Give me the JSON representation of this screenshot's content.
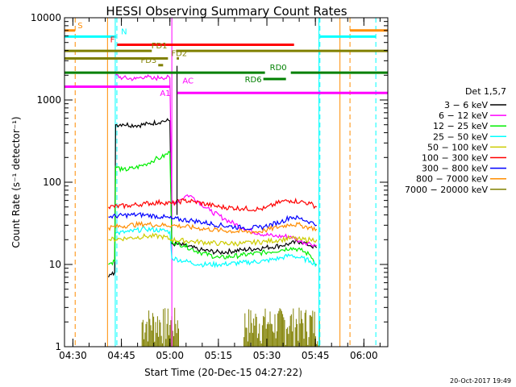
{
  "chart_data": {
    "type": "line",
    "title": "HESSI Observing Summary Count Rates",
    "xlabel": "Start Time (20-Dec-15 04:27:22)",
    "ylabel": "Count Rate (s⁻¹ detector⁻¹)",
    "x_unit": "minutes after 04:27:22",
    "xlim": [
      0,
      100
    ],
    "ylim": [
      1,
      10000
    ],
    "y_scale": "log",
    "grid": false,
    "x_ticks": [
      {
        "x": 2.6,
        "label": "04:30"
      },
      {
        "x": 17.6,
        "label": "04:45"
      },
      {
        "x": 32.6,
        "label": "05:00"
      },
      {
        "x": 47.6,
        "label": "05:15"
      },
      {
        "x": 62.6,
        "label": "05:30"
      },
      {
        "x": 77.6,
        "label": "05:45"
      },
      {
        "x": 92.6,
        "label": "06:00"
      }
    ],
    "y_ticks": [
      {
        "y": 1,
        "label": "1"
      },
      {
        "y": 10,
        "label": "10"
      },
      {
        "y": 100,
        "label": "100"
      },
      {
        "y": 1000,
        "label": "1000"
      },
      {
        "y": 10000,
        "label": "10000"
      }
    ],
    "legend": {
      "placement": "right",
      "title": "Det 1,5,7",
      "entries": [
        {
          "label": "3 − 6 keV",
          "color": "#000000"
        },
        {
          "label": "6 − 12 keV",
          "color": "#ff00ff"
        },
        {
          "label": "12 − 25 keV",
          "color": "#00ee00"
        },
        {
          "label": "25 − 50 keV",
          "color": "#00ffff"
        },
        {
          "label": "50 − 100 keV",
          "color": "#cccc00"
        },
        {
          "label": "100 − 300 keV",
          "color": "#ff0000"
        },
        {
          "label": "300 − 800 keV",
          "color": "#0000ff"
        },
        {
          "label": "800 − 7000 keV",
          "color": "#ff8c00"
        },
        {
          "label": "7000 − 20000 keV",
          "color": "#808000"
        }
      ]
    },
    "series": [
      {
        "name": "3 − 6 keV",
        "color": "#000000",
        "points": [
          [
            13.6,
            7
          ],
          [
            14.5,
            7.5
          ],
          [
            15.5,
            8
          ],
          [
            15.8,
            500
          ],
          [
            18,
            510
          ],
          [
            22,
            490
          ],
          [
            26,
            510
          ],
          [
            30,
            550
          ],
          [
            32.6,
            560
          ],
          [
            33.2,
            18
          ],
          [
            37,
            17
          ],
          [
            42,
            15
          ],
          [
            48,
            14
          ],
          [
            55,
            15
          ],
          [
            62,
            16
          ],
          [
            67,
            17
          ],
          [
            70,
            18
          ],
          [
            73,
            19
          ],
          [
            76,
            17
          ],
          [
            78,
            16
          ]
        ]
      },
      {
        "name": "6 − 12 keV",
        "color": "#ff00ff",
        "points": [
          [
            15.8,
            2000
          ],
          [
            18,
            1850
          ],
          [
            22,
            1800
          ],
          [
            25,
            1950
          ],
          [
            27,
            1800
          ],
          [
            30,
            1900
          ],
          [
            32.6,
            1850
          ],
          [
            33.2,
            55
          ],
          [
            36,
            62
          ],
          [
            38,
            70
          ],
          [
            40,
            65
          ],
          [
            45,
            45
          ],
          [
            50,
            35
          ],
          [
            55,
            28
          ],
          [
            60,
            24
          ],
          [
            65,
            22
          ],
          [
            70,
            22
          ],
          [
            73,
            19
          ],
          [
            76,
            18
          ],
          [
            78,
            17
          ]
        ]
      },
      {
        "name": "12 − 25 keV",
        "color": "#00ee00",
        "points": [
          [
            13.6,
            10
          ],
          [
            14.5,
            10.5
          ],
          [
            15.5,
            11
          ],
          [
            15.8,
            155
          ],
          [
            18,
            140
          ],
          [
            22,
            150
          ],
          [
            25,
            165
          ],
          [
            28,
            190
          ],
          [
            30,
            200
          ],
          [
            32.6,
            230
          ],
          [
            33.2,
            19
          ],
          [
            37,
            17
          ],
          [
            42,
            14
          ],
          [
            48,
            12
          ],
          [
            55,
            13
          ],
          [
            62,
            14
          ],
          [
            67,
            15
          ],
          [
            70,
            16
          ],
          [
            73,
            15
          ],
          [
            76,
            13
          ],
          [
            78,
            10
          ]
        ]
      },
      {
        "name": "25 − 50 keV",
        "color": "#00ffff",
        "points": [
          [
            15.8,
            24
          ],
          [
            20,
            25
          ],
          [
            25,
            27
          ],
          [
            30,
            26
          ],
          [
            32.6,
            25
          ],
          [
            33.2,
            12
          ],
          [
            37,
            11
          ],
          [
            42,
            10
          ],
          [
            48,
            10
          ],
          [
            55,
            10.5
          ],
          [
            62,
            11
          ],
          [
            67,
            12
          ],
          [
            70,
            13
          ],
          [
            73,
            12
          ],
          [
            76,
            11
          ],
          [
            78,
            10
          ]
        ]
      },
      {
        "name": "50 − 100 keV",
        "color": "#cccc00",
        "points": [
          [
            13.6,
            20
          ],
          [
            20,
            21
          ],
          [
            25,
            22
          ],
          [
            30,
            22
          ],
          [
            33.2,
            20
          ],
          [
            40,
            19
          ],
          [
            48,
            18
          ],
          [
            55,
            18
          ],
          [
            62,
            19
          ],
          [
            67,
            20
          ],
          [
            70,
            21
          ],
          [
            73,
            20
          ],
          [
            76,
            20
          ],
          [
            78,
            20
          ]
        ]
      },
      {
        "name": "100 − 300 keV",
        "color": "#ff0000",
        "points": [
          [
            13.6,
            50
          ],
          [
            20,
            52
          ],
          [
            25,
            55
          ],
          [
            30,
            57
          ],
          [
            33.2,
            55
          ],
          [
            37,
            60
          ],
          [
            40,
            58
          ],
          [
            48,
            50
          ],
          [
            55,
            48
          ],
          [
            60,
            47
          ],
          [
            62,
            48
          ],
          [
            67,
            58
          ],
          [
            70,
            60
          ],
          [
            73,
            58
          ],
          [
            76,
            55
          ],
          [
            78,
            50
          ]
        ]
      },
      {
        "name": "300 − 800 keV",
        "color": "#0000ff",
        "points": [
          [
            13.6,
            38
          ],
          [
            20,
            40
          ],
          [
            25,
            40
          ],
          [
            30,
            38
          ],
          [
            33.2,
            36
          ],
          [
            40,
            34
          ],
          [
            48,
            30
          ],
          [
            55,
            28
          ],
          [
            60,
            28
          ],
          [
            62,
            29
          ],
          [
            67,
            33
          ],
          [
            70,
            38
          ],
          [
            73,
            36
          ],
          [
            76,
            33
          ],
          [
            78,
            30
          ]
        ]
      },
      {
        "name": "800 − 7000 keV",
        "color": "#ff8c00",
        "points": [
          [
            13.6,
            28
          ],
          [
            20,
            30
          ],
          [
            25,
            31
          ],
          [
            30,
            30
          ],
          [
            33.2,
            30
          ],
          [
            40,
            28
          ],
          [
            48,
            26
          ],
          [
            55,
            25
          ],
          [
            60,
            25
          ],
          [
            62,
            26
          ],
          [
            67,
            29
          ],
          [
            70,
            31
          ],
          [
            73,
            30
          ],
          [
            76,
            28
          ],
          [
            78,
            27
          ]
        ]
      }
    ],
    "noise_series": {
      "name": "7000 − 20000 keV",
      "color": "#808000",
      "segments": [
        [
          24,
          30.6
        ],
        [
          31.1,
          35.4
        ],
        [
          55.5,
          79
        ]
      ],
      "max_y": 3
    },
    "markers": [
      {
        "x": 3.3,
        "color": "#ff8c00"
      },
      {
        "x": 16.2,
        "color": "#00ffff"
      },
      {
        "x": 79,
        "color": "#00ffff"
      },
      {
        "x": 88.3,
        "color": "#ff8c00"
      },
      {
        "x": 96.3,
        "color": "#00ffff"
      }
    ],
    "shading_lines": [
      {
        "x": 13.3,
        "color": "#ff8c00"
      },
      {
        "x": 15.7,
        "color": "#00ffff"
      },
      {
        "x": 33.2,
        "color": "#ff00ff"
      },
      {
        "x": 78.7,
        "color": "#00ffff"
      },
      {
        "x": 85.2,
        "color": "#ff8c00"
      }
    ],
    "flag_bars": [
      {
        "label": "S",
        "color": "#ff8c00",
        "y": 7000,
        "segments": [
          [
            0,
            3.3
          ],
          [
            88.3,
            100
          ]
        ]
      },
      {
        "label": "N",
        "color": "#00ffff",
        "y": 5900,
        "segments": [
          [
            0,
            16
          ],
          [
            79,
            96.3
          ]
        ]
      },
      {
        "label": "F",
        "color": "#ff0000",
        "y": 4700,
        "segments": [
          [
            16.3,
            71
          ]
        ]
      },
      {
        "label": "FD1",
        "color": "#808000",
        "y": 3950,
        "segments": [
          [
            0,
            27
          ],
          [
            34.5,
            100
          ]
        ]
      },
      {
        "label": "FD2",
        "color": "#808000",
        "y": 3200,
        "segments": [
          [
            0,
            32
          ],
          [
            34.7,
            35.4
          ]
        ]
      },
      {
        "label": "FD3",
        "color": "#808000",
        "y": 2650,
        "segments": [
          [
            29,
            30.5
          ]
        ]
      },
      {
        "label": "RD0",
        "color": "#008000",
        "y": 2150,
        "segments": [
          [
            0,
            62
          ],
          [
            70,
            100
          ]
        ]
      },
      {
        "label": "RD6",
        "color": "#008000",
        "y": 1800,
        "segments": [
          [
            61.5,
            68.5
          ]
        ]
      },
      {
        "label": "AC",
        "color": "#ff00ff",
        "y": 1450,
        "segments": [
          [
            0,
            32.6
          ]
        ]
      },
      {
        "label": "A1",
        "color": "#ff00ff",
        "y": 1220,
        "segments": [
          [
            34.9,
            100
          ]
        ]
      }
    ],
    "spike": {
      "x": 34.8,
      "y_from": 40,
      "y_to": 2600,
      "color": "#000000"
    }
  },
  "footer": {
    "timestamp": "20-Oct-2017 19:49"
  }
}
